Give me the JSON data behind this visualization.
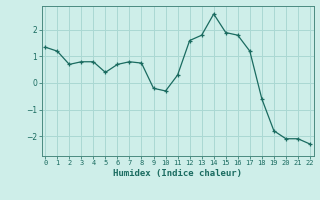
{
  "x": [
    0,
    1,
    2,
    3,
    4,
    5,
    6,
    7,
    8,
    9,
    10,
    11,
    12,
    13,
    14,
    15,
    16,
    17,
    18,
    19,
    20,
    21,
    22
  ],
  "y": [
    1.35,
    1.2,
    0.7,
    0.8,
    0.8,
    0.4,
    0.7,
    0.8,
    0.75,
    -0.2,
    -0.3,
    0.3,
    1.6,
    1.8,
    2.6,
    1.9,
    1.8,
    1.2,
    -0.6,
    -1.8,
    -2.1,
    -2.1,
    -2.3
  ],
  "xlabel": "Humidex (Indice chaleur)",
  "bg_color": "#ceeee9",
  "grid_color": "#aad8d3",
  "line_color": "#1a6b60",
  "marker_color": "#1a6b60",
  "ylim": [
    -2.75,
    2.9
  ],
  "xlim": [
    -0.3,
    22.3
  ],
  "yticks": [
    -2,
    -1,
    0,
    1,
    2
  ],
  "xticks": [
    0,
    1,
    2,
    3,
    4,
    5,
    6,
    7,
    8,
    9,
    10,
    11,
    12,
    13,
    14,
    15,
    16,
    17,
    18,
    19,
    20,
    21,
    22
  ]
}
